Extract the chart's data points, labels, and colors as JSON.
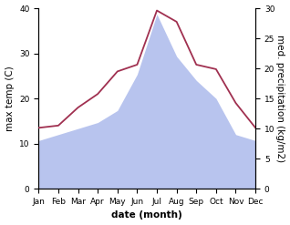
{
  "months": [
    "Jan",
    "Feb",
    "Mar",
    "Apr",
    "May",
    "Jun",
    "Jul",
    "Aug",
    "Sep",
    "Oct",
    "Nov",
    "Dec"
  ],
  "month_positions": [
    0,
    1,
    2,
    3,
    4,
    5,
    6,
    7,
    8,
    9,
    10,
    11
  ],
  "max_temp": [
    13.5,
    14.0,
    18.0,
    21.0,
    26.0,
    27.5,
    39.5,
    37.0,
    27.5,
    26.5,
    19.0,
    13.5
  ],
  "precipitation": [
    8.0,
    9.0,
    10.0,
    11.0,
    13.0,
    19.0,
    29.0,
    22.0,
    18.0,
    15.0,
    9.0,
    8.0
  ],
  "temp_color": "#a03050",
  "precip_fill_color": "#b8c4ee",
  "temp_ylim": [
    0,
    40
  ],
  "precip_ylim": [
    0,
    30
  ],
  "temp_yticks": [
    0,
    10,
    20,
    30,
    40
  ],
  "precip_yticks": [
    0,
    5,
    10,
    15,
    20,
    25,
    30
  ],
  "xlabel": "date (month)",
  "ylabel_left": "max temp (C)",
  "ylabel_right": "med. precipitation (kg/m2)",
  "label_fontsize": 7.5,
  "tick_fontsize": 6.5,
  "linewidth": 1.3,
  "figsize": [
    3.18,
    2.47
  ],
  "dpi": 100
}
